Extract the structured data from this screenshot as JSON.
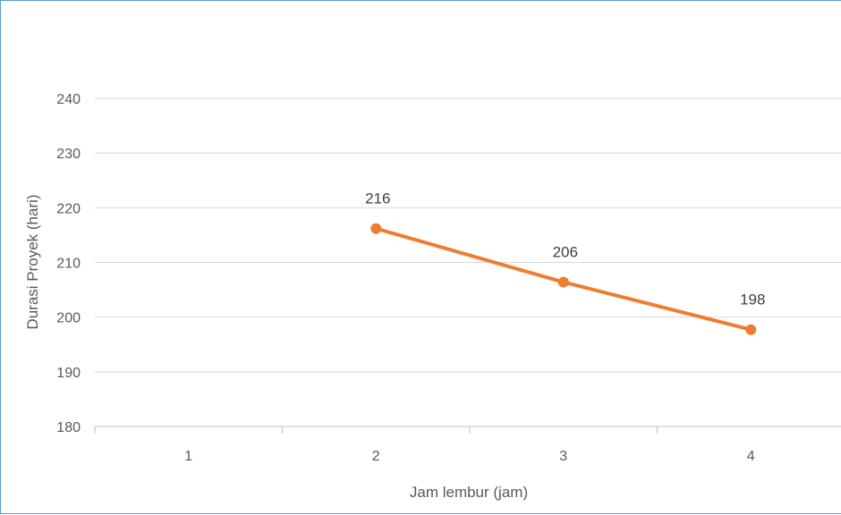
{
  "chart_data": {
    "type": "line",
    "title": "",
    "xlabel": "Jam lembur (jam)",
    "ylabel": "Durasi Proyek (hari)",
    "categories": [
      "1",
      "2",
      "3",
      "4"
    ],
    "ylim": [
      180,
      240
    ],
    "yticks": [
      180,
      190,
      200,
      210,
      220,
      230,
      240
    ],
    "grid": true,
    "legend": "none",
    "series": [
      {
        "color": "#ed7d31",
        "values": [
          null,
          216.2,
          206.4,
          197.7
        ],
        "labels": [
          "",
          "216",
          "206",
          "198"
        ]
      }
    ]
  }
}
